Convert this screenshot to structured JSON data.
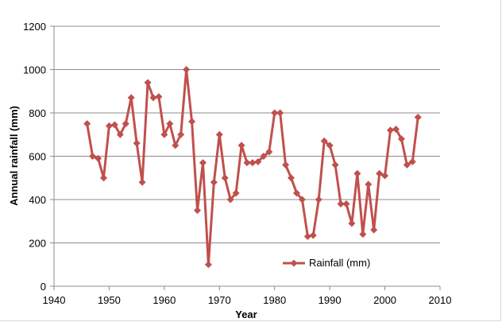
{
  "chart_data": {
    "type": "line",
    "title": "",
    "xlabel": "Year",
    "ylabel": "Annual rainfall (mm)",
    "xlim": [
      1940,
      2010
    ],
    "ylim": [
      0,
      1200
    ],
    "x_ticks": [
      1940,
      1950,
      1960,
      1970,
      1980,
      1990,
      2000,
      2010
    ],
    "y_ticks": [
      0,
      200,
      400,
      600,
      800,
      1000,
      1200
    ],
    "grid": "horizontal",
    "legend_position": "bottom-right inside plot",
    "series": [
      {
        "name": "Rainfall (mm)",
        "color": "#c0504d",
        "marker": "diamond",
        "x": [
          1946,
          1947,
          1948,
          1949,
          1950,
          1951,
          1952,
          1953,
          1954,
          1955,
          1956,
          1957,
          1958,
          1959,
          1960,
          1961,
          1962,
          1963,
          1964,
          1965,
          1966,
          1967,
          1968,
          1969,
          1970,
          1971,
          1972,
          1973,
          1974,
          1975,
          1976,
          1977,
          1978,
          1979,
          1980,
          1981,
          1982,
          1983,
          1984,
          1985,
          1986,
          1987,
          1988,
          1989,
          1990,
          1991,
          1992,
          1993,
          1994,
          1995,
          1996,
          1997,
          1998,
          1999,
          2000,
          2001,
          2002,
          2003,
          2004,
          2005,
          2006
        ],
        "y": [
          750,
          600,
          590,
          500,
          740,
          745,
          700,
          750,
          870,
          660,
          480,
          940,
          870,
          875,
          700,
          750,
          650,
          700,
          1000,
          760,
          350,
          570,
          100,
          480,
          700,
          500,
          400,
          430,
          650,
          570,
          570,
          575,
          600,
          620,
          800,
          800,
          560,
          500,
          430,
          400,
          230,
          235,
          400,
          670,
          650,
          560,
          380,
          380,
          290,
          520,
          240,
          470,
          260,
          520,
          510,
          720,
          725,
          680,
          560,
          575,
          780
        ]
      }
    ]
  }
}
